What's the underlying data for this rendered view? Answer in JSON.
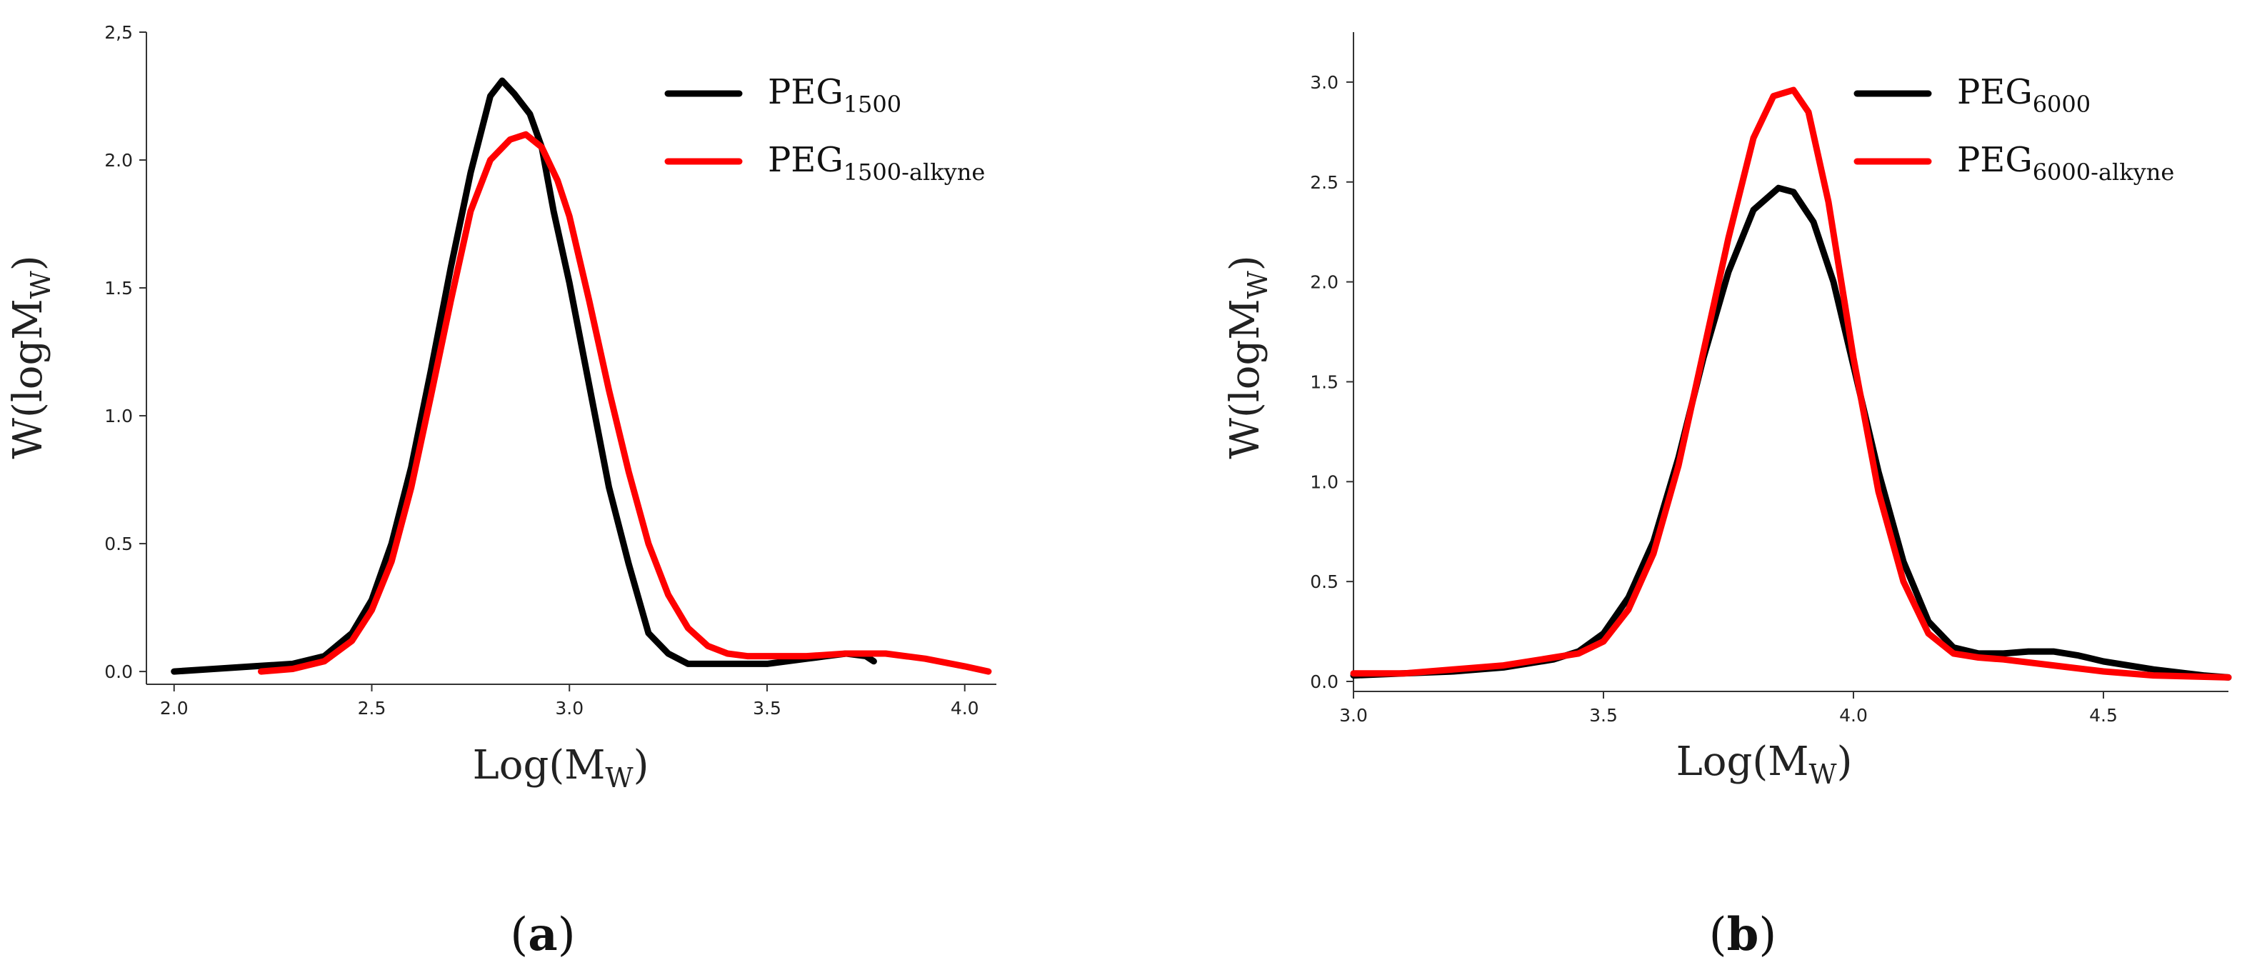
{
  "chart_data": [
    {
      "type": "line",
      "panel": "a",
      "panel_label": "a",
      "xlabel": {
        "text": "Log(M",
        "sub": "W",
        "close": ")"
      },
      "ylabel": {
        "text": "W(logM",
        "sub": "W",
        "close": ")"
      },
      "xlim": [
        1.93,
        4.08
      ],
      "ylim": [
        -0.05,
        2.5
      ],
      "xticks": [
        2.0,
        2.5,
        3.0,
        3.5,
        4.0
      ],
      "xtick_labels": [
        "2.0",
        "2.5",
        "3.0",
        "3.5",
        "4.0"
      ],
      "yticks": [
        0.0,
        0.5,
        1.0,
        1.5,
        2.0,
        2.5
      ],
      "ytick_labels": [
        "0.0",
        "0.5",
        "1.0",
        "1.5",
        "2.0",
        "2,5"
      ],
      "legend_position": "top-right",
      "series": [
        {
          "name": "PEG",
          "sub": "1500",
          "color": "#000000",
          "x": [
            2.0,
            2.1,
            2.2,
            2.3,
            2.38,
            2.45,
            2.5,
            2.55,
            2.6,
            2.65,
            2.7,
            2.75,
            2.8,
            2.83,
            2.86,
            2.88,
            2.9,
            2.93,
            2.96,
            3.0,
            3.05,
            3.1,
            3.15,
            3.2,
            3.25,
            3.3,
            3.35,
            3.4,
            3.45,
            3.5,
            3.55,
            3.6,
            3.65,
            3.7,
            3.75,
            3.77
          ],
          "y": [
            0.0,
            0.01,
            0.02,
            0.03,
            0.06,
            0.15,
            0.28,
            0.5,
            0.8,
            1.18,
            1.58,
            1.95,
            2.25,
            2.31,
            2.26,
            2.22,
            2.18,
            2.05,
            1.8,
            1.52,
            1.12,
            0.72,
            0.42,
            0.15,
            0.07,
            0.03,
            0.03,
            0.03,
            0.03,
            0.03,
            0.04,
            0.05,
            0.06,
            0.07,
            0.06,
            0.04
          ]
        },
        {
          "name": "PEG",
          "sub": "1500-alkyne",
          "color": "#ff0000",
          "x": [
            2.22,
            2.3,
            2.38,
            2.45,
            2.5,
            2.55,
            2.6,
            2.65,
            2.7,
            2.75,
            2.8,
            2.85,
            2.89,
            2.93,
            2.97,
            3.0,
            3.05,
            3.1,
            3.15,
            3.2,
            3.25,
            3.3,
            3.35,
            3.4,
            3.45,
            3.5,
            3.6,
            3.7,
            3.8,
            3.9,
            4.0,
            4.06
          ],
          "y": [
            0.0,
            0.01,
            0.04,
            0.12,
            0.24,
            0.43,
            0.72,
            1.08,
            1.45,
            1.8,
            2.0,
            2.08,
            2.1,
            2.05,
            1.92,
            1.78,
            1.45,
            1.1,
            0.78,
            0.5,
            0.3,
            0.17,
            0.1,
            0.07,
            0.06,
            0.06,
            0.06,
            0.07,
            0.07,
            0.05,
            0.02,
            0.0
          ]
        }
      ]
    },
    {
      "type": "line",
      "panel": "b",
      "panel_label": "b",
      "xlabel": {
        "text": "Log(M",
        "sub": "W",
        "close": ")"
      },
      "ylabel": {
        "text": "W(logM",
        "sub": "W",
        "close": ")"
      },
      "xlim": [
        3.0,
        4.75
      ],
      "ylim": [
        -0.05,
        3.25
      ],
      "xticks": [
        3.0,
        3.5,
        4.0,
        4.5
      ],
      "xtick_labels": [
        "3.0",
        "3.5",
        "4.0",
        "4.5"
      ],
      "yticks": [
        0.0,
        0.5,
        1.0,
        1.5,
        2.0,
        2.5,
        3.0
      ],
      "ytick_labels": [
        "0.0",
        "0.5",
        "1.0",
        "1.5",
        "2.0",
        "2.5",
        "3.0"
      ],
      "legend_position": "top-right",
      "series": [
        {
          "name": "PEG",
          "sub": "6000",
          "color": "#000000",
          "x": [
            3.0,
            3.1,
            3.2,
            3.3,
            3.4,
            3.45,
            3.5,
            3.55,
            3.6,
            3.65,
            3.7,
            3.75,
            3.8,
            3.85,
            3.88,
            3.92,
            3.96,
            4.0,
            4.05,
            4.1,
            4.15,
            4.2,
            4.25,
            4.3,
            4.35,
            4.4,
            4.45,
            4.5,
            4.6,
            4.7,
            4.75
          ],
          "y": [
            0.03,
            0.04,
            0.05,
            0.07,
            0.11,
            0.15,
            0.24,
            0.42,
            0.7,
            1.12,
            1.62,
            2.05,
            2.36,
            2.47,
            2.45,
            2.3,
            2.0,
            1.58,
            1.05,
            0.6,
            0.3,
            0.17,
            0.14,
            0.14,
            0.15,
            0.15,
            0.13,
            0.1,
            0.06,
            0.03,
            0.02
          ]
        },
        {
          "name": "PEG",
          "sub": "6000-alkyne",
          "color": "#ff0000",
          "x": [
            3.0,
            3.1,
            3.2,
            3.3,
            3.4,
            3.45,
            3.5,
            3.55,
            3.6,
            3.65,
            3.7,
            3.75,
            3.8,
            3.84,
            3.88,
            3.91,
            3.95,
            4.0,
            4.05,
            4.1,
            4.15,
            4.2,
            4.25,
            4.3,
            4.4,
            4.5,
            4.6,
            4.75
          ],
          "y": [
            0.04,
            0.04,
            0.06,
            0.08,
            0.12,
            0.14,
            0.2,
            0.36,
            0.64,
            1.08,
            1.65,
            2.22,
            2.72,
            2.93,
            2.96,
            2.85,
            2.4,
            1.62,
            0.95,
            0.5,
            0.24,
            0.14,
            0.12,
            0.11,
            0.08,
            0.05,
            0.03,
            0.02
          ]
        }
      ]
    }
  ]
}
